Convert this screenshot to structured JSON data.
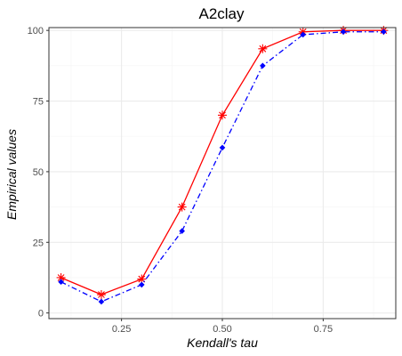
{
  "chart_data": {
    "type": "line",
    "title": "A2clay",
    "xlabel": "Kendall's tau",
    "ylabel": "Empirical values",
    "xlim": [
      0.07,
      0.93
    ],
    "ylim": [
      -2,
      101
    ],
    "x_ticks": [
      0.25,
      0.5,
      0.75
    ],
    "x_tick_labels": [
      "0.25",
      "0.50",
      "0.75"
    ],
    "x_minor": [
      0.125,
      0.375,
      0.625,
      0.875
    ],
    "y_ticks": [
      0,
      25,
      50,
      75,
      100
    ],
    "y_tick_labels": [
      "0",
      "25",
      "50",
      "75",
      "100"
    ],
    "y_minor": [
      12.5,
      37.5,
      62.5,
      87.5
    ],
    "grid": true,
    "legend": "none",
    "x": [
      0.1,
      0.2,
      0.3,
      0.4,
      0.5,
      0.6,
      0.7,
      0.8,
      0.9
    ],
    "series": [
      {
        "values": [
          12.5,
          6.5,
          12.0,
          37.5,
          70.0,
          93.5,
          99.5,
          100.0,
          100.0
        ],
        "color": "#ff0000",
        "line": "solid",
        "marker": "asterisk"
      },
      {
        "values": [
          11.0,
          4.0,
          10.0,
          29.0,
          58.5,
          87.5,
          98.5,
          99.5,
          99.5
        ],
        "color": "#0000ff",
        "line": "dashdot",
        "marker": "diamond"
      }
    ]
  }
}
